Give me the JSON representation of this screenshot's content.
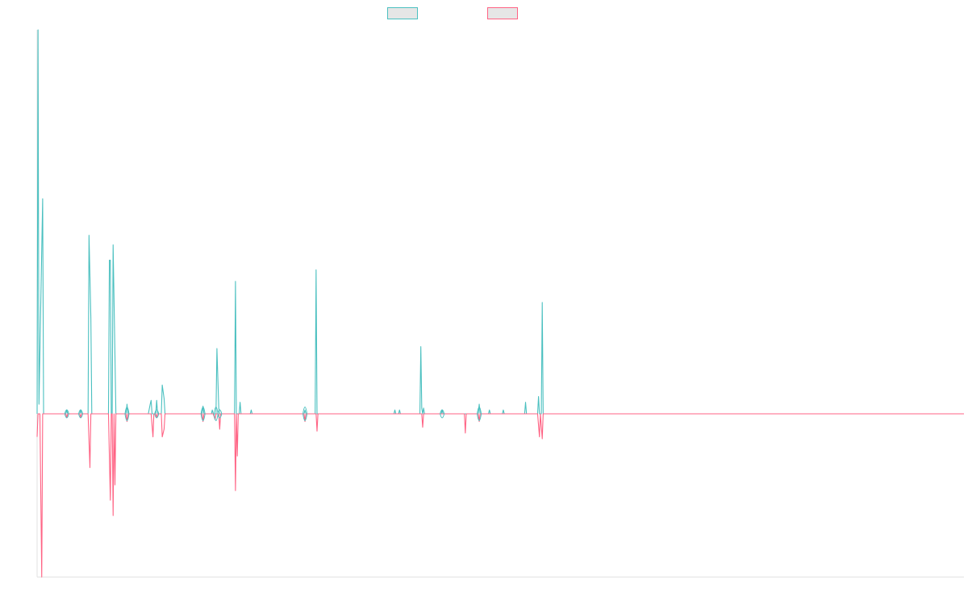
{
  "colors": {
    "series_a_stroke": "#4bc0c0",
    "series_b_stroke": "#ff6384",
    "legend_fill": "#e6e6e6",
    "axis": "#e0e0e0"
  },
  "legend": {
    "position": "top-center",
    "items": [
      {
        "label": "",
        "color": "#4bc0c0"
      },
      {
        "label": "",
        "color": "#ff6384"
      }
    ]
  },
  "chart_data": {
    "type": "line",
    "title": "",
    "xlabel": "",
    "ylabel": "",
    "grid": false,
    "x_range": [
      0,
      1000
    ],
    "ylim": [
      -0.85,
      2.0
    ],
    "baseline": 0,
    "series": [
      {
        "color": "#4bc0c0",
        "style": "line",
        "points": [
          [
            0,
            0
          ],
          [
            1,
            2.0
          ],
          [
            2,
            0.05
          ],
          [
            6,
            1.12
          ],
          [
            7,
            0
          ],
          [
            31,
            0
          ],
          [
            32,
            0.02
          ],
          [
            33,
            0
          ],
          [
            46,
            0
          ],
          [
            47,
            0.02
          ],
          [
            48,
            0
          ],
          [
            55,
            0
          ],
          [
            56,
            0.93
          ],
          [
            58,
            0.5
          ],
          [
            59,
            0
          ],
          [
            77,
            0
          ],
          [
            78,
            0.8
          ],
          [
            79,
            0.8
          ],
          [
            80,
            0
          ],
          [
            81,
            0
          ],
          [
            82,
            0.88
          ],
          [
            84,
            0.3
          ],
          [
            85,
            0
          ],
          [
            96,
            0
          ],
          [
            97,
            0.05
          ],
          [
            98,
            0
          ],
          [
            120,
            0
          ],
          [
            122,
            0.05
          ],
          [
            123,
            0.07
          ],
          [
            124,
            0
          ],
          [
            128,
            0
          ],
          [
            129,
            0.07
          ],
          [
            130,
            0
          ],
          [
            134,
            0
          ],
          [
            135,
            0.15
          ],
          [
            137,
            0.08
          ],
          [
            138,
            0
          ],
          [
            178,
            0
          ],
          [
            179,
            0.04
          ],
          [
            180,
            0
          ],
          [
            188,
            0
          ],
          [
            189,
            0.02
          ],
          [
            190,
            0
          ],
          [
            193,
            0
          ],
          [
            194,
            0.34
          ],
          [
            196,
            0.03
          ],
          [
            197,
            0
          ],
          [
            213,
            0
          ],
          [
            214,
            0.69
          ],
          [
            215,
            0
          ],
          [
            218,
            0
          ],
          [
            219,
            0.06
          ],
          [
            220,
            0
          ],
          [
            230,
            0
          ],
          [
            231,
            0.02
          ],
          [
            232,
            0
          ],
          [
            288,
            0
          ],
          [
            289,
            0.02
          ],
          [
            290,
            0
          ],
          [
            300,
            0
          ],
          [
            301,
            0.75
          ],
          [
            302,
            0
          ],
          [
            385,
            0
          ],
          [
            386,
            0.02
          ],
          [
            387,
            0
          ],
          [
            390,
            0
          ],
          [
            391,
            0.02
          ],
          [
            392,
            0
          ],
          [
            413,
            0
          ],
          [
            414,
            0.35
          ],
          [
            415,
            0.03
          ],
          [
            416,
            0
          ],
          [
            417,
            0.03
          ],
          [
            418,
            0
          ],
          [
            436,
            0
          ],
          [
            437,
            0.02
          ],
          [
            438,
            0
          ],
          [
            476,
            0
          ],
          [
            477,
            0.05
          ],
          [
            478,
            0
          ],
          [
            487,
            0
          ],
          [
            488,
            0.02
          ],
          [
            489,
            0
          ],
          [
            502,
            0
          ],
          [
            503,
            0.02
          ],
          [
            504,
            0
          ],
          [
            526,
            0
          ],
          [
            527,
            0.06
          ],
          [
            528,
            0
          ],
          [
            540,
            0
          ],
          [
            541,
            0.09
          ],
          [
            542,
            0
          ],
          [
            544,
            0
          ],
          [
            545,
            0.58
          ],
          [
            546,
            0
          ],
          [
            1000,
            0
          ]
        ]
      },
      {
        "color": "#ff6384",
        "style": "line",
        "points": [
          [
            0,
            -0.12
          ],
          [
            1,
            0
          ],
          [
            3,
            0
          ],
          [
            5,
            -0.85
          ],
          [
            6,
            0
          ],
          [
            31,
            0
          ],
          [
            32,
            -0.02
          ],
          [
            33,
            0
          ],
          [
            46,
            0
          ],
          [
            47,
            -0.02
          ],
          [
            48,
            0
          ],
          [
            55,
            0
          ],
          [
            57,
            -0.28
          ],
          [
            58,
            0
          ],
          [
            77,
            0
          ],
          [
            79,
            -0.45
          ],
          [
            80,
            0
          ],
          [
            81,
            0
          ],
          [
            82,
            -0.53
          ],
          [
            83,
            0
          ],
          [
            84,
            -0.37
          ],
          [
            85,
            0
          ],
          [
            96,
            0
          ],
          [
            97,
            -0.04
          ],
          [
            98,
            0
          ],
          [
            123,
            0
          ],
          [
            125,
            -0.12
          ],
          [
            126,
            0
          ],
          [
            128,
            0
          ],
          [
            129,
            -0.02
          ],
          [
            130,
            0
          ],
          [
            134,
            0
          ],
          [
            135,
            -0.12
          ],
          [
            137,
            -0.08
          ],
          [
            138,
            0
          ],
          [
            178,
            0
          ],
          [
            179,
            -0.04
          ],
          [
            180,
            0
          ],
          [
            190,
            0
          ],
          [
            192,
            -0.03
          ],
          [
            193,
            0
          ],
          [
            196,
            0
          ],
          [
            197,
            -0.08
          ],
          [
            198,
            0
          ],
          [
            213,
            0
          ],
          [
            214,
            -0.4
          ],
          [
            215,
            0
          ],
          [
            216,
            -0.22
          ],
          [
            217,
            0
          ],
          [
            288,
            0
          ],
          [
            289,
            -0.04
          ],
          [
            290,
            0
          ],
          [
            301,
            0
          ],
          [
            302,
            -0.09
          ],
          [
            303,
            0
          ],
          [
            415,
            0
          ],
          [
            416,
            -0.07
          ],
          [
            417,
            0
          ],
          [
            461,
            0
          ],
          [
            462,
            -0.1
          ],
          [
            463,
            0
          ],
          [
            476,
            0
          ],
          [
            477,
            -0.04
          ],
          [
            478,
            0
          ],
          [
            540,
            0
          ],
          [
            542,
            -0.12
          ],
          [
            543,
            0
          ],
          [
            545,
            -0.13
          ],
          [
            546,
            0
          ],
          [
            1000,
            0
          ]
        ]
      }
    ],
    "symmetric_marks": [
      {
        "x": 32,
        "value": 0.03
      },
      {
        "x": 47,
        "value": 0.03
      },
      {
        "x": 97,
        "value": 0.05
      },
      {
        "x": 129,
        "value": 0.03
      },
      {
        "x": 179,
        "value": 0.05
      },
      {
        "x": 193,
        "value": 0.05
      },
      {
        "x": 197,
        "value": 0.03
      },
      {
        "x": 289,
        "value": 0.05
      },
      {
        "x": 437,
        "value": 0.03
      },
      {
        "x": 477,
        "value": 0.05
      }
    ]
  }
}
